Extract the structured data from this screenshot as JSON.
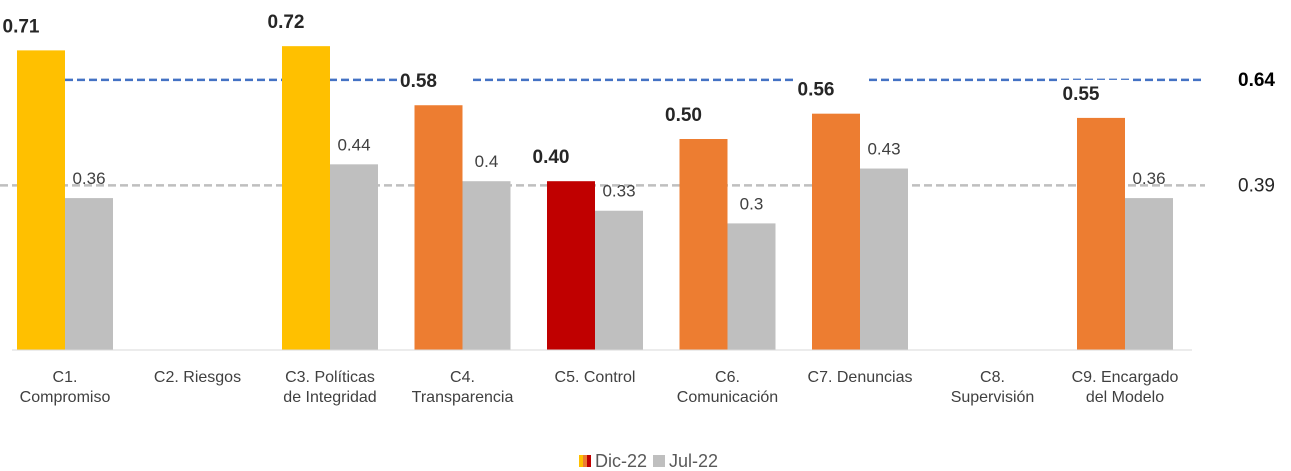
{
  "chart_data": {
    "type": "bar",
    "categories": [
      "C1.\nCompromiso",
      "C2. Riesgos",
      "C3. Políticas\nde Integridad",
      "C4.\nTransparencia",
      "C5. Control",
      "C6.\nComunicación",
      "C7. Denuncias",
      "C8.\nSupervisión",
      "C9. Encargado\ndel Modelo"
    ],
    "series": [
      {
        "name": "Dic-22",
        "colors": [
          "#ffc000",
          null,
          "#ffc000",
          "#ed7d31",
          "#c00000",
          "#ed7d31",
          "#ed7d31",
          null,
          "#ed7d31"
        ],
        "values": [
          0.71,
          null,
          0.72,
          0.58,
          0.4,
          0.5,
          0.56,
          null,
          0.55
        ],
        "value_labels": [
          "0.71",
          null,
          "0.72",
          "0.58",
          "0.40",
          "0.50",
          "0.56",
          null,
          "0.55"
        ]
      },
      {
        "name": "Jul-22",
        "color": "#bfbfbf",
        "values": [
          0.36,
          null,
          0.44,
          0.4,
          0.33,
          0.3,
          0.43,
          null,
          0.36
        ]
      }
    ],
    "reference_lines": [
      {
        "value": 0.64,
        "color": "#4472c4",
        "bold": true
      },
      {
        "value": 0.39,
        "color": "#bfbfbf",
        "bold": false
      }
    ],
    "ylim": [
      0,
      0.8
    ],
    "legend": "bottom"
  }
}
